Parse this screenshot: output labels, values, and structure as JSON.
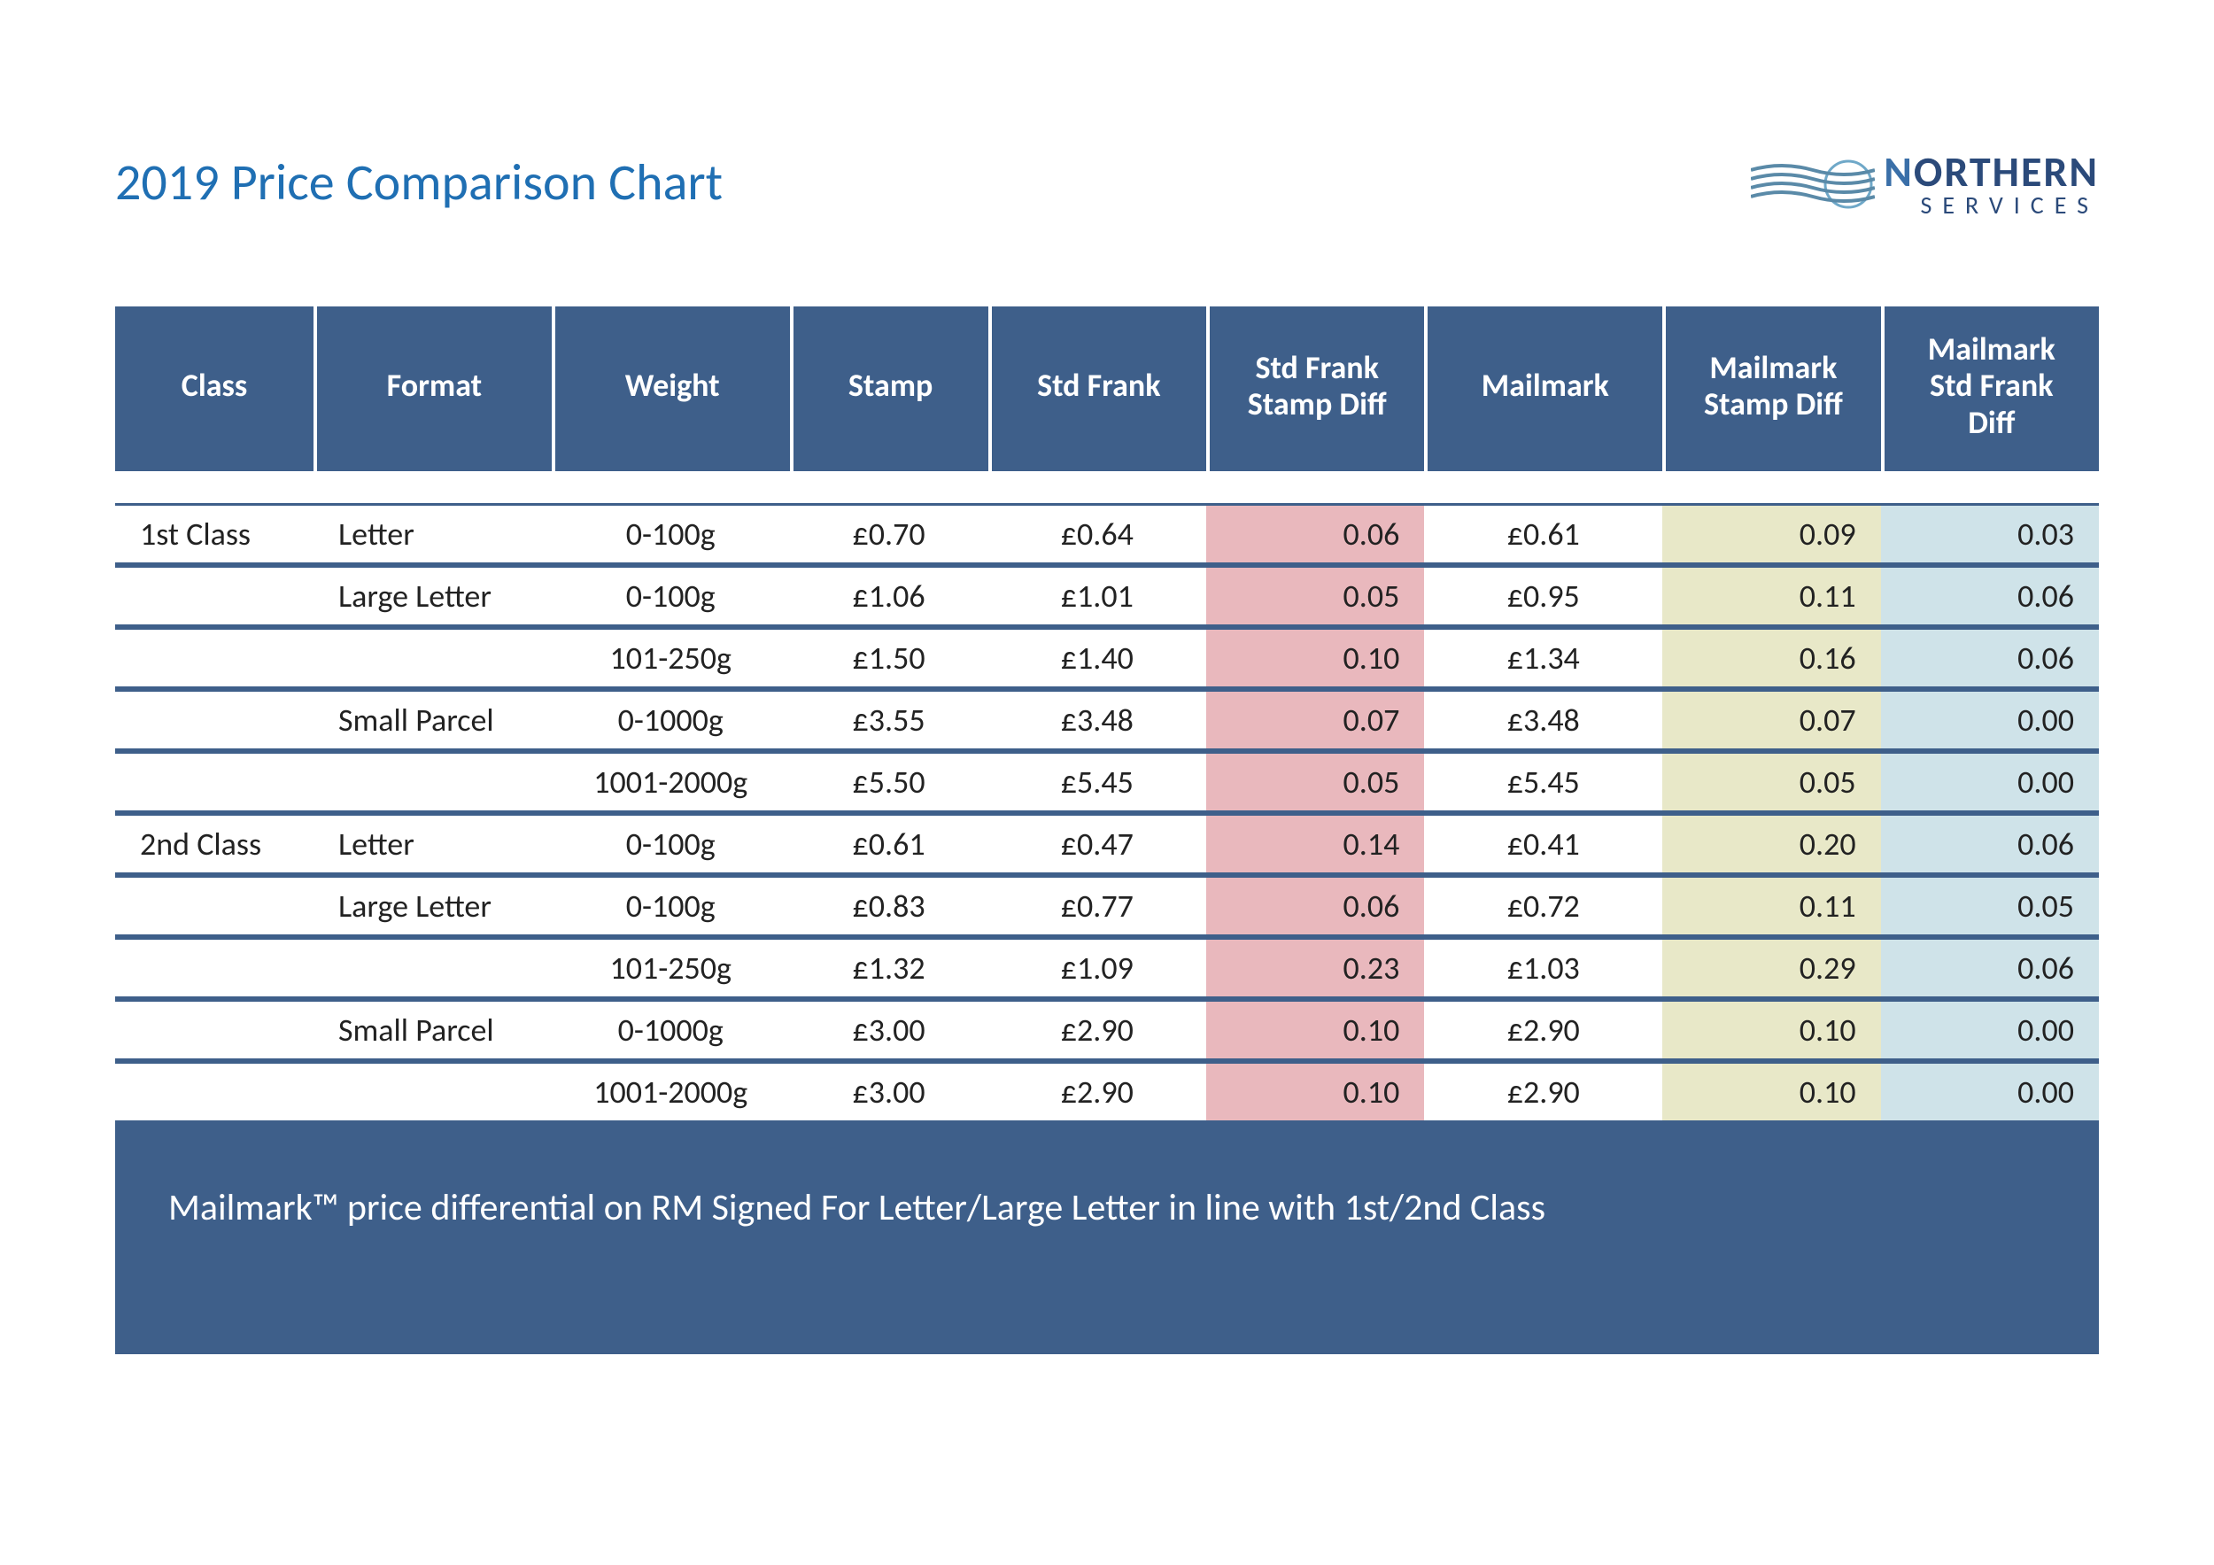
{
  "title": "2019 Price Comparison Chart",
  "logo": {
    "main_prefix": "N",
    "main_rest": "ORTHERN",
    "sub": "SERVICES",
    "wave_color": "#5a8aa8",
    "circle_color": "#6fa8c8",
    "text_primary": "#2b4a7a",
    "text_accent": "#3a6fa8"
  },
  "colors": {
    "header_bg": "#3e5f8a",
    "header_text": "#ffffff",
    "row_border": "#3e5f8a",
    "diff_pink": "#e9b8bd",
    "diff_green": "#e8e8c8",
    "diff_blue": "#cfe3e9",
    "title_color": "#1f6fb3",
    "body_text": "#222222",
    "page_bg": "#ffffff"
  },
  "typography": {
    "title_fontsize": 58,
    "header_fontsize": 36,
    "cell_fontsize": 36,
    "footer_fontsize": 42,
    "font_family": "Calibri"
  },
  "table": {
    "type": "table",
    "columns": [
      "Class",
      "Format",
      "Weight",
      "Stamp",
      "Std Frank",
      "Std Frank Stamp Diff",
      "Mailmark",
      "Mailmark Stamp Diff",
      "Mailmark Std Frank Diff"
    ],
    "col_widths_pct": [
      10,
      12,
      12,
      10,
      11,
      11,
      12,
      11,
      11
    ],
    "col_align": [
      "left",
      "left",
      "center",
      "center",
      "center",
      "right",
      "center",
      "right",
      "right"
    ],
    "highlight_cols": {
      "5": "pink",
      "7": "green",
      "8": "blue"
    },
    "rows": [
      {
        "class": "1st Class",
        "format": "Letter",
        "weight": "0-100g",
        "stamp": "£0.70",
        "frank": "£0.64",
        "d1": "0.06",
        "mail": "£0.61",
        "d2": "0.09",
        "d3": "0.03"
      },
      {
        "class": "",
        "format": "Large Letter",
        "weight": "0-100g",
        "stamp": "£1.06",
        "frank": "£1.01",
        "d1": "0.05",
        "mail": "£0.95",
        "d2": "0.11",
        "d3": "0.06"
      },
      {
        "class": "",
        "format": "",
        "weight": "101-250g",
        "stamp": "£1.50",
        "frank": "£1.40",
        "d1": "0.10",
        "mail": "£1.34",
        "d2": "0.16",
        "d3": "0.06"
      },
      {
        "class": "",
        "format": "Small Parcel",
        "weight": "0-1000g",
        "stamp": "£3.55",
        "frank": "£3.48",
        "d1": "0.07",
        "mail": "£3.48",
        "d2": "0.07",
        "d3": "0.00"
      },
      {
        "class": "",
        "format": "",
        "weight": "1001-2000g",
        "stamp": "£5.50",
        "frank": "£5.45",
        "d1": "0.05",
        "mail": "£5.45",
        "d2": "0.05",
        "d3": "0.00"
      },
      {
        "class": "2nd Class",
        "format": "Letter",
        "weight": "0-100g",
        "stamp": "£0.61",
        "frank": "£0.47",
        "d1": "0.14",
        "mail": "£0.41",
        "d2": "0.20",
        "d3": "0.06"
      },
      {
        "class": "",
        "format": "Large Letter",
        "weight": "0-100g",
        "stamp": "£0.83",
        "frank": "£0.77",
        "d1": "0.06",
        "mail": "£0.72",
        "d2": "0.11",
        "d3": "0.05"
      },
      {
        "class": "",
        "format": "",
        "weight": "101-250g",
        "stamp": "£1.32",
        "frank": "£1.09",
        "d1": "0.23",
        "mail": "£1.03",
        "d2": "0.29",
        "d3": "0.06"
      },
      {
        "class": "",
        "format": "Small Parcel",
        "weight": "0-1000g",
        "stamp": "£3.00",
        "frank": "£2.90",
        "d1": "0.10",
        "mail": "£2.90",
        "d2": "0.10",
        "d3": "0.00"
      },
      {
        "class": "",
        "format": "",
        "weight": "1001-2000g",
        "stamp": "£3.00",
        "frank": "£2.90",
        "d1": "0.10",
        "mail": "£2.90",
        "d2": "0.10",
        "d3": "0.00"
      }
    ]
  },
  "footer_note": "Mailmark™ price differential on RM Signed For Letter/Large Letter in line with 1st/2nd Class"
}
